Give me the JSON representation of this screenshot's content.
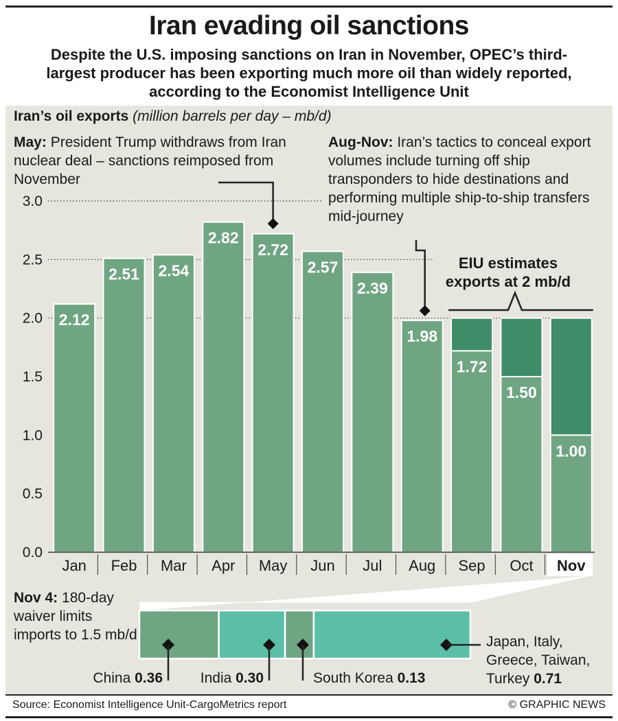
{
  "title": "Iran evading oil sanctions",
  "subtitle": "Despite the U.S. imposing sanctions on Iran in November, OPEC’s third-largest producer has been exporting much more oil than widely reported, according to the Economist Intelligence Unit",
  "chart_heading": {
    "bold": "Iran’s oil exports",
    "italic": "(million barrels per day – mb/d)"
  },
  "annotations": {
    "may": {
      "bold": "May:",
      "text": "President Trump withdraws from Iran nuclear deal – sanctions reimposed from November"
    },
    "augnov": {
      "bold": "Aug-Nov:",
      "text": "Iran’s tactics to conceal export volumes include turning off ship transponders to hide destinations and performing multiple ship-to-ship transfers mid-journey"
    },
    "eiu": "EIU estimates exports at 2 mb/d",
    "nov4": {
      "bold": "Nov 4:",
      "text": "180-day waiver limits imports to 1.5 mb/d"
    }
  },
  "chart_data": [
    {
      "type": "bar",
      "categories": [
        "Jan",
        "Feb",
        "Mar",
        "Apr",
        "May",
        "Jun",
        "Jul",
        "Aug",
        "Sep",
        "Oct",
        "Nov"
      ],
      "values": [
        2.12,
        2.51,
        2.54,
        2.82,
        2.72,
        2.57,
        2.39,
        1.98,
        1.72,
        1.5,
        1.0
      ],
      "value_labels": [
        "2.12",
        "2.51",
        "2.54",
        "2.82",
        "2.72",
        "2.57",
        "2.39",
        "1.98",
        "1.72",
        "1.50",
        "1.00"
      ],
      "eiu_estimate": {
        "categories": [
          "Sep",
          "Oct",
          "Nov"
        ],
        "value": 2.0
      },
      "yticks": [
        "0.0",
        "0.5",
        "1.0",
        "1.5",
        "2.0",
        "2.5",
        "3.0"
      ],
      "ylim": [
        0,
        3.0
      ],
      "highlight_category": "Nov",
      "grid": "dotted at 2.0, 2.5, 3.0"
    },
    {
      "type": "bar",
      "orientation": "horizontal stacked",
      "segments": [
        {
          "name": "China",
          "value": 0.36,
          "label": "0.36"
        },
        {
          "name": "India",
          "value": 0.3,
          "label": "0.30"
        },
        {
          "name": "South Korea",
          "value": 0.13,
          "label": "0.13"
        },
        {
          "name": "Japan, Italy, Greece, Taiwan, Turkey",
          "value": 0.71,
          "label": "0.71"
        }
      ]
    }
  ],
  "colors": {
    "bar": "#6fa583",
    "estimate": "#3e8c68",
    "teal": "#5bbfa8",
    "panel": "#e6e6de"
  },
  "footer": {
    "source": "Source: Economist Intelligence Unit-CargoMetrics report",
    "credit": "© GRAPHIC NEWS"
  }
}
